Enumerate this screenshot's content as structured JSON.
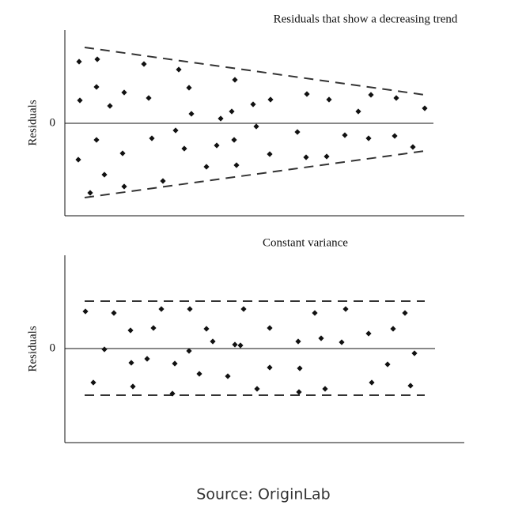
{
  "source": "Source: OriginLab",
  "chart_data": [
    {
      "type": "scatter",
      "title": "Residuals that show a decreasing trend",
      "y_label": "Residuals",
      "xlim": [
        0,
        505
      ],
      "ylim": [
        -117,
        118
      ],
      "yticks": [
        0
      ],
      "color": "#111111",
      "bound_color": "#333333",
      "x": [
        18,
        41,
        19,
        40,
        57,
        75,
        100,
        106,
        144,
        157,
        160,
        197,
        211,
        215,
        238,
        260,
        306,
        334,
        371,
        387,
        419,
        455,
        17,
        32,
        40,
        50,
        73,
        75,
        110,
        124,
        140,
        151,
        179,
        192,
        214,
        217,
        242,
        259,
        294,
        305,
        331,
        354,
        384,
        417,
        440
      ],
      "values": [
        78,
        81,
        29,
        46,
        22,
        39,
        75,
        32,
        68,
        45,
        12,
        6,
        15,
        55,
        24,
        30,
        37,
        30,
        15,
        36,
        32,
        19,
        -46,
        -88,
        -21,
        -65,
        -38,
        -80,
        -19,
        -73,
        -9,
        -32,
        -55,
        -28,
        -21,
        -53,
        -4,
        -39,
        -11,
        -43,
        -42,
        -15,
        -19,
        -16,
        -30
      ],
      "bounds": [
        {
          "x": [
            25,
            455
          ],
          "values": [
            96,
            36
          ]
        },
        {
          "x": [
            25,
            455
          ],
          "values": [
            -94,
            -35
          ]
        }
      ]
    },
    {
      "type": "scatter",
      "title": "Constant variance",
      "y_label": "Residuals",
      "xlim": [
        0,
        505
      ],
      "ylim": [
        -119,
        118
      ],
      "yticks": [
        0
      ],
      "color": "#111111",
      "bound_color": "#333333",
      "x": [
        26,
        36,
        50,
        62,
        83,
        84,
        86,
        104,
        112,
        122,
        136,
        139,
        157,
        158,
        170,
        179,
        187,
        206,
        215,
        222,
        226,
        243,
        259,
        259,
        295,
        297,
        296,
        316,
        324,
        329,
        350,
        355,
        384,
        388,
        408,
        415,
        430,
        437,
        442
      ],
      "values": [
        47,
        -43,
        -1,
        45,
        23,
        -18,
        -48,
        -13,
        26,
        50,
        -57,
        -19,
        -3,
        50,
        -32,
        25,
        9,
        -35,
        5,
        4,
        50,
        -51,
        26,
        -24,
        9,
        -25,
        -55,
        45,
        13,
        -51,
        8,
        50,
        19,
        -43,
        -20,
        25,
        45,
        -47,
        -6
      ],
      "bounds": [
        {
          "x": [
            25,
            455
          ],
          "values": [
            60,
            60
          ]
        },
        {
          "x": [
            25,
            455
          ],
          "values": [
            -59,
            -59
          ]
        }
      ]
    }
  ]
}
